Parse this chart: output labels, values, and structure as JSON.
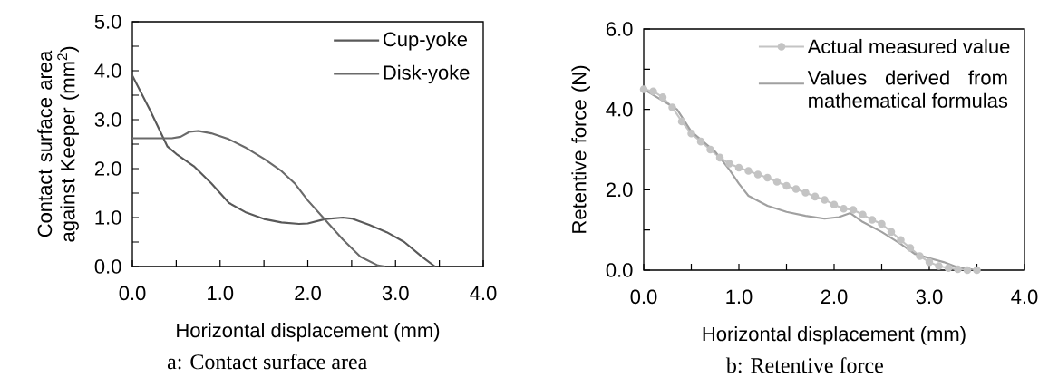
{
  "chart_data": [
    {
      "type": "line",
      "xlabel": "Horizontal displacement (mm)",
      "ylabel": "Contact surface area against Keeper (mm$^{2}$)",
      "annotations": [
        "a: Contact surface area"
      ],
      "legend": "top right",
      "xlim": [
        0,
        4
      ],
      "ylim": [
        0,
        5
      ],
      "xticks": [
        {
          "value": 0,
          "label": "0.0"
        },
        {
          "value": 0.5,
          "label": null
        },
        {
          "value": 1,
          "label": "1.0"
        },
        {
          "value": 1.5,
          "label": null
        },
        {
          "value": 2,
          "label": "2.0"
        },
        {
          "value": 2.5,
          "label": null
        },
        {
          "value": 3,
          "label": "3.0"
        },
        {
          "value": 3.5,
          "label": null
        },
        {
          "value": 4,
          "label": "4.0"
        }
      ],
      "yticks": [
        {
          "value": 0,
          "label": "0.0"
        },
        {
          "value": 0.5,
          "label": null
        },
        {
          "value": 1,
          "label": "1.0"
        },
        {
          "value": 1.5,
          "label": null
        },
        {
          "value": 2,
          "label": "2.0"
        },
        {
          "value": 2.5,
          "label": null
        },
        {
          "value": 3,
          "label": "3.0"
        },
        {
          "value": 3.5,
          "label": null
        },
        {
          "value": 4,
          "label": "4.0"
        },
        {
          "value": 4.5,
          "label": null
        },
        {
          "value": 5,
          "label": "5.0"
        }
      ],
      "series": [
        {
          "name": "Cup-yoke",
          "color": "#595959",
          "x": [
            0,
            0.2,
            0.4,
            0.5,
            0.7,
            0.9,
            1.1,
            1.3,
            1.5,
            1.7,
            1.9,
            2.0,
            2.2,
            2.4,
            2.5,
            2.7,
            2.9,
            3.1,
            3.3,
            3.45
          ],
          "values": [
            3.9,
            3.2,
            2.45,
            2.3,
            2.05,
            1.7,
            1.3,
            1.1,
            0.97,
            0.9,
            0.87,
            0.88,
            0.97,
            1.0,
            0.98,
            0.85,
            0.7,
            0.5,
            0.2,
            0.0
          ]
        },
        {
          "name": "Disk-yoke",
          "color": "#6a6a6a",
          "x": [
            0,
            0.45,
            0.55,
            0.65,
            0.75,
            0.9,
            1.1,
            1.3,
            1.5,
            1.7,
            1.85,
            2.0,
            2.2,
            2.4,
            2.6,
            2.8,
            2.88
          ],
          "values": [
            2.62,
            2.62,
            2.65,
            2.75,
            2.77,
            2.72,
            2.6,
            2.42,
            2.2,
            1.95,
            1.7,
            1.35,
            0.95,
            0.55,
            0.2,
            0.02,
            0.0
          ]
        }
      ]
    },
    {
      "type": "line",
      "xlabel": "Horizontal displacement (mm)",
      "ylabel": "Retentive force (N)",
      "annotations": [
        "b: Retentive force"
      ],
      "legend": "top right",
      "xlim": [
        0,
        4
      ],
      "ylim": [
        0,
        6
      ],
      "xticks": [
        {
          "value": 0,
          "label": "0.0"
        },
        {
          "value": 0.5,
          "label": null
        },
        {
          "value": 1,
          "label": "1.0"
        },
        {
          "value": 1.5,
          "label": null
        },
        {
          "value": 2,
          "label": "2.0"
        },
        {
          "value": 2.5,
          "label": null
        },
        {
          "value": 3,
          "label": "3.0"
        },
        {
          "value": 3.5,
          "label": null
        },
        {
          "value": 4,
          "label": "4.0"
        }
      ],
      "yticks": [
        {
          "value": 0,
          "label": "0.0"
        },
        {
          "value": 1,
          "label": null
        },
        {
          "value": 2,
          "label": "2.0"
        },
        {
          "value": 3,
          "label": null
        },
        {
          "value": 4,
          "label": "4.0"
        },
        {
          "value": 5,
          "label": null
        },
        {
          "value": 6,
          "label": "6.0"
        }
      ],
      "series": [
        {
          "name": "Actual measured value",
          "color": "#c4c4c4",
          "marker": "circle",
          "x": [
            0,
            0.1,
            0.2,
            0.3,
            0.4,
            0.5,
            0.6,
            0.7,
            0.8,
            0.9,
            1.0,
            1.1,
            1.2,
            1.3,
            1.4,
            1.5,
            1.6,
            1.7,
            1.8,
            1.9,
            2.0,
            2.1,
            2.2,
            2.3,
            2.4,
            2.5,
            2.6,
            2.7,
            2.8,
            2.9,
            3.0,
            3.1,
            3.2,
            3.3,
            3.4,
            3.5
          ],
          "values": [
            4.5,
            4.45,
            4.3,
            4.05,
            3.7,
            3.4,
            3.2,
            3.0,
            2.8,
            2.65,
            2.55,
            2.47,
            2.38,
            2.3,
            2.2,
            2.1,
            2.02,
            1.93,
            1.83,
            1.75,
            1.63,
            1.53,
            1.5,
            1.38,
            1.25,
            1.15,
            0.95,
            0.75,
            0.55,
            0.35,
            0.2,
            0.1,
            0.05,
            0.02,
            0.0,
            0.0
          ]
        },
        {
          "name": "Values derived from mathematical formulas",
          "color": "#a0a0a0",
          "marker": "none",
          "x": [
            0,
            0.35,
            0.5,
            0.75,
            0.9,
            1.0,
            1.1,
            1.3,
            1.5,
            1.7,
            1.9,
            2.05,
            2.17,
            2.3,
            2.5,
            2.7,
            2.85,
            3.0,
            3.15,
            3.3,
            3.5
          ],
          "values": [
            4.5,
            4.0,
            3.45,
            2.95,
            2.5,
            2.15,
            1.85,
            1.6,
            1.45,
            1.35,
            1.28,
            1.32,
            1.42,
            1.2,
            0.95,
            0.65,
            0.4,
            0.3,
            0.2,
            0.07,
            0.0
          ]
        }
      ]
    }
  ]
}
